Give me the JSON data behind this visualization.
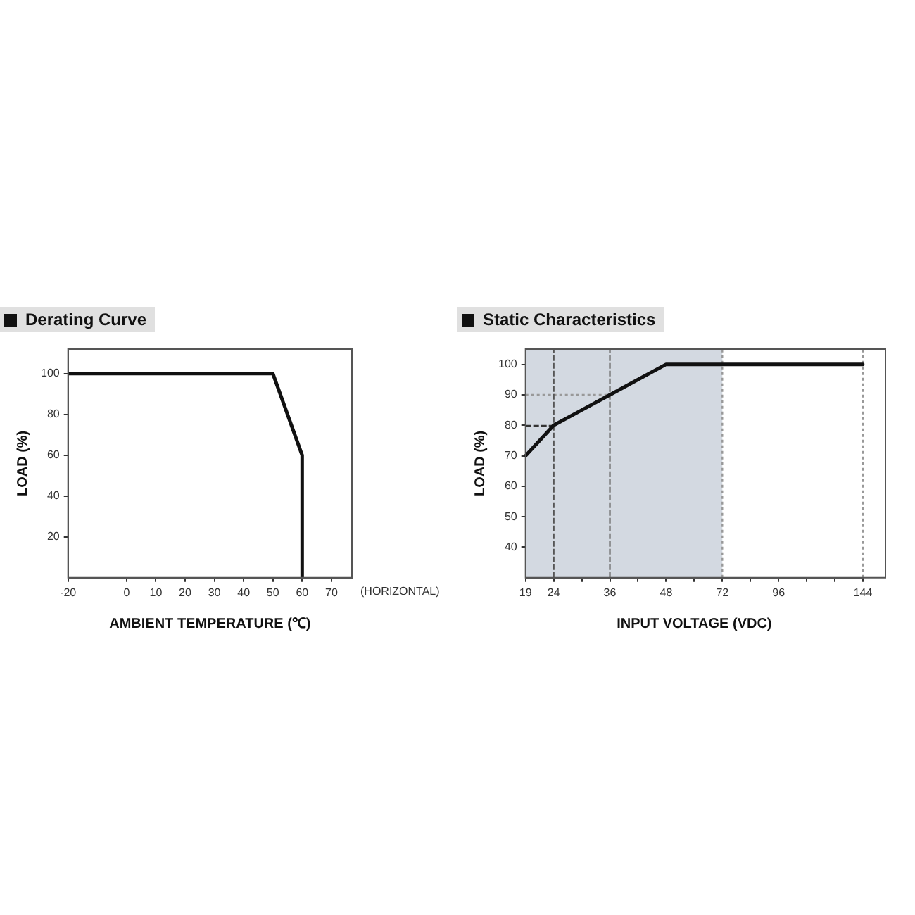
{
  "chart_data": [
    {
      "type": "line",
      "title": "Derating Curve",
      "xlabel": "AMBIENT TEMPERATURE (℃)",
      "ylabel": "LOAD (%)",
      "annotations": [
        "(HORIZONTAL)"
      ],
      "x": [
        -20,
        50,
        60,
        60
      ],
      "series": [
        {
          "color": "#111111",
          "values": [
            100,
            100,
            60,
            0
          ]
        }
      ],
      "xlim": [
        -20,
        77
      ],
      "xticks": [
        -20,
        0,
        10,
        20,
        30,
        40,
        50,
        60,
        70
      ],
      "ylim": [
        0,
        112
      ],
      "yticks": [
        20,
        40,
        60,
        80,
        100
      ]
    },
    {
      "type": "line",
      "title": "Static Characteristics",
      "xlabel": "INPUT VOLTAGE (VDC)",
      "ylabel": "LOAD (%)",
      "categories": [
        "19",
        "24",
        null,
        "36",
        null,
        "48",
        null,
        "72",
        null,
        "96",
        null,
        null,
        "144"
      ],
      "series": [
        {
          "color": "#111111",
          "values": [
            70,
            80,
            85,
            90,
            95,
            100,
            100,
            100,
            100,
            100,
            100,
            100,
            100
          ]
        }
      ],
      "ylim": [
        30,
        105
      ],
      "yticks": [
        40,
        50,
        60,
        70,
        80,
        90,
        100
      ],
      "bands": [
        {
          "axis": "x",
          "from": "19",
          "to": "72",
          "color": "#d3d9e1"
        }
      ],
      "ref_lines": [
        {
          "axis": "y",
          "value": 80,
          "line_style": "dashed",
          "color": "#333333"
        },
        {
          "axis": "y",
          "value": 90,
          "line_style": "dotted",
          "color": "#999999"
        },
        {
          "axis": "x",
          "value": "24",
          "line_style": "dashed",
          "color": "#555555"
        },
        {
          "axis": "x",
          "value": "36",
          "line_style": "dashed",
          "color": "#777777"
        },
        {
          "axis": "x",
          "value": "72",
          "line_style": "dotted",
          "color": "#999999"
        },
        {
          "axis": "x",
          "value": "144",
          "line_style": "dotted",
          "color": "#999999"
        }
      ]
    }
  ]
}
